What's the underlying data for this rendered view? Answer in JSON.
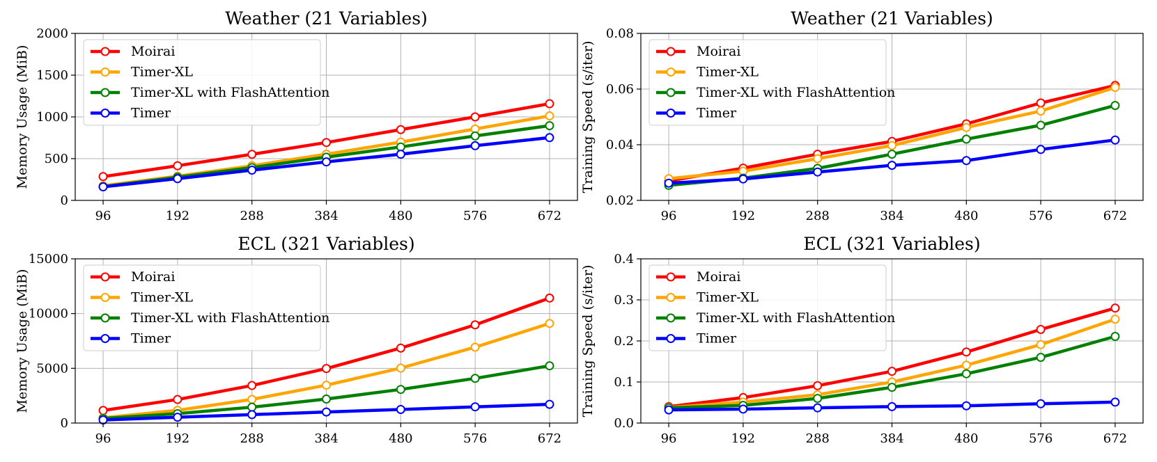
{
  "chart_data": [
    {
      "type": "line",
      "title": "Weather (21 Variables)",
      "xlabel": "",
      "ylabel": "Memory Usage (MiB)",
      "x": [
        96,
        192,
        288,
        384,
        480,
        576,
        672
      ],
      "ylim": [
        0,
        2000
      ],
      "yticks": [
        "0",
        "500",
        "1000",
        "1500",
        "2000"
      ],
      "grid": true,
      "legend": "top-left",
      "series": [
        {
          "name": "Moirai",
          "color": "#ff0000",
          "values": [
            285,
            415,
            552,
            693,
            848,
            1000,
            1158
          ]
        },
        {
          "name": "Timer-XL",
          "color": "#ffa500",
          "values": [
            175,
            290,
            415,
            553,
            698,
            855,
            1012
          ]
        },
        {
          "name": "Timer-XL with FlashAttention",
          "color": "#008000",
          "values": [
            165,
            278,
            393,
            518,
            640,
            772,
            895
          ]
        },
        {
          "name": "Timer",
          "color": "#0000ff",
          "values": [
            162,
            260,
            362,
            461,
            553,
            655,
            752
          ]
        }
      ]
    },
    {
      "type": "line",
      "title": "Weather (21 Variables)",
      "xlabel": "",
      "ylabel": "Training Speed (s/iter)",
      "x": [
        96,
        192,
        288,
        384,
        480,
        576,
        672
      ],
      "ylim": [
        0.02,
        0.08
      ],
      "yticks": [
        "0.02",
        "0.04",
        "0.06",
        "0.08"
      ],
      "grid": true,
      "legend": "top-left",
      "series": [
        {
          "name": "Moirai",
          "color": "#ff0000",
          "values": [
            0.027,
            0.0316,
            0.0366,
            0.0412,
            0.0475,
            0.055,
            0.0613
          ]
        },
        {
          "name": "Timer-XL",
          "color": "#ffa500",
          "values": [
            0.0278,
            0.0305,
            0.035,
            0.0397,
            0.0462,
            0.0521,
            0.0606
          ]
        },
        {
          "name": "Timer-XL with FlashAttention",
          "color": "#008000",
          "values": [
            0.0254,
            0.028,
            0.0315,
            0.0366,
            0.042,
            0.047,
            0.0541
          ]
        },
        {
          "name": "Timer",
          "color": "#0000ff",
          "values": [
            0.0262,
            0.0277,
            0.0302,
            0.0326,
            0.0343,
            0.0383,
            0.0417
          ]
        }
      ]
    },
    {
      "type": "line",
      "title": "ECL (321 Variables)",
      "xlabel": "",
      "ylabel": "Memory Usage (MiB)",
      "x": [
        96,
        192,
        288,
        384,
        480,
        576,
        672
      ],
      "ylim": [
        0,
        15000
      ],
      "yticks": [
        "0",
        "5000",
        "10000",
        "15000"
      ],
      "grid": true,
      "legend": "top-left",
      "series": [
        {
          "name": "Moirai",
          "color": "#ff0000",
          "values": [
            1150,
            2150,
            3430,
            4980,
            6850,
            8970,
            11420
          ]
        },
        {
          "name": "Timer-XL",
          "color": "#ffa500",
          "values": [
            480,
            1160,
            2160,
            3460,
            5020,
            6930,
            9100
          ]
        },
        {
          "name": "Timer-XL with FlashAttention",
          "color": "#008000",
          "values": [
            420,
            860,
            1450,
            2190,
            3070,
            4080,
            5230
          ]
        },
        {
          "name": "Timer",
          "color": "#0000ff",
          "values": [
            280,
            530,
            770,
            1010,
            1240,
            1480,
            1710
          ]
        }
      ]
    },
    {
      "type": "line",
      "title": "ECL (321 Variables)",
      "xlabel": "",
      "ylabel": "Training Speed (s/iter)",
      "x": [
        96,
        192,
        288,
        384,
        480,
        576,
        672
      ],
      "ylim": [
        0.0,
        0.4
      ],
      "yticks": [
        "0.0",
        "0.1",
        "0.2",
        "0.3",
        "0.4"
      ],
      "grid": true,
      "legend": "top-left",
      "series": [
        {
          "name": "Moirai",
          "color": "#ff0000",
          "values": [
            0.04,
            0.062,
            0.091,
            0.126,
            0.173,
            0.228,
            0.28
          ]
        },
        {
          "name": "Timer-XL",
          "color": "#ffa500",
          "values": [
            0.038,
            0.051,
            0.069,
            0.1,
            0.141,
            0.191,
            0.253
          ]
        },
        {
          "name": "Timer-XL with FlashAttention",
          "color": "#008000",
          "values": [
            0.037,
            0.043,
            0.06,
            0.087,
            0.12,
            0.16,
            0.211
          ]
        },
        {
          "name": "Timer",
          "color": "#0000ff",
          "values": [
            0.032,
            0.034,
            0.037,
            0.04,
            0.042,
            0.047,
            0.051
          ]
        }
      ]
    }
  ]
}
